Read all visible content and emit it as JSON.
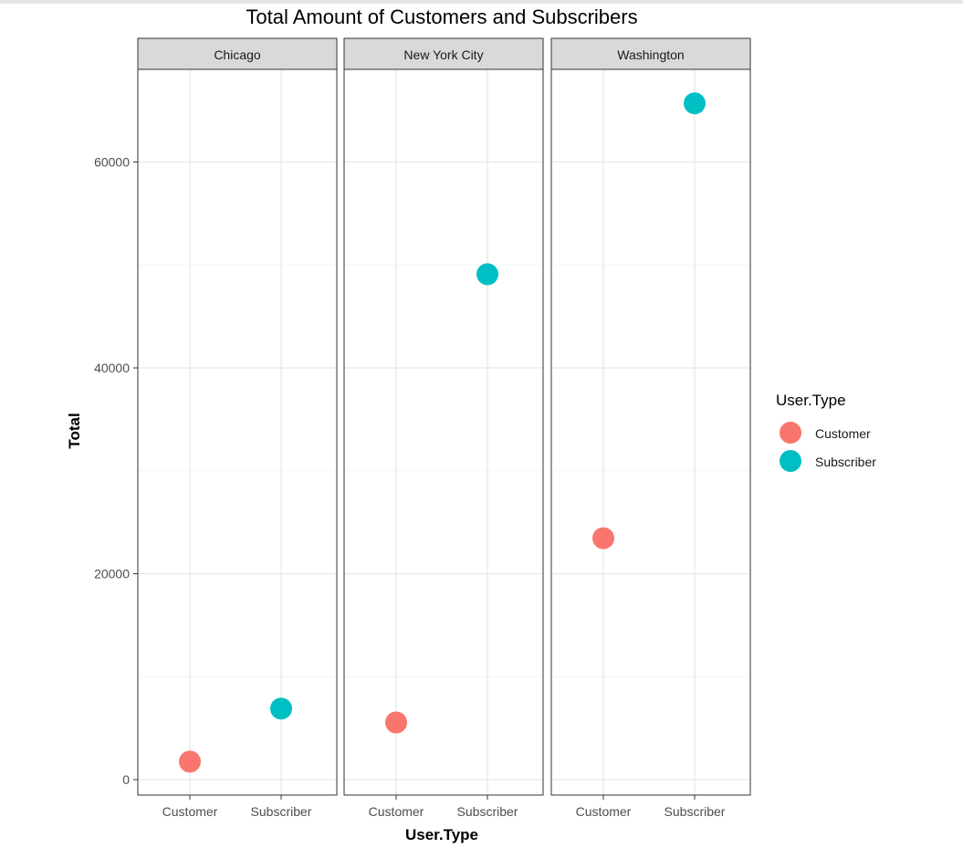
{
  "chart_data": {
    "type": "scatter",
    "title": "Total Amount of Customers and Subscribers",
    "xlabel": "User.Type",
    "ylabel": "Total",
    "categories": [
      "Customer",
      "Subscriber"
    ],
    "ylim": [
      -1500,
      69000
    ],
    "yticks": [
      0,
      20000,
      40000,
      60000
    ],
    "ytick_labels": [
      "0",
      "20000",
      "40000",
      "60000"
    ],
    "grid": true,
    "legend": {
      "title": "User.Type",
      "placement": "right",
      "entries": [
        {
          "label": "Customer",
          "color": "#F8766D"
        },
        {
          "label": "Subscriber",
          "color": "#00BFC4"
        }
      ]
    },
    "facets": [
      {
        "name": "Chicago",
        "points": [
          {
            "x": "Customer",
            "y": 1750
          },
          {
            "x": "Subscriber",
            "y": 6900
          }
        ]
      },
      {
        "name": "New York City",
        "points": [
          {
            "x": "Customer",
            "y": 5550
          },
          {
            "x": "Subscriber",
            "y": 49100
          }
        ]
      },
      {
        "name": "Washington",
        "points": [
          {
            "x": "Customer",
            "y": 23450
          },
          {
            "x": "Subscriber",
            "y": 65700
          }
        ]
      }
    ]
  }
}
